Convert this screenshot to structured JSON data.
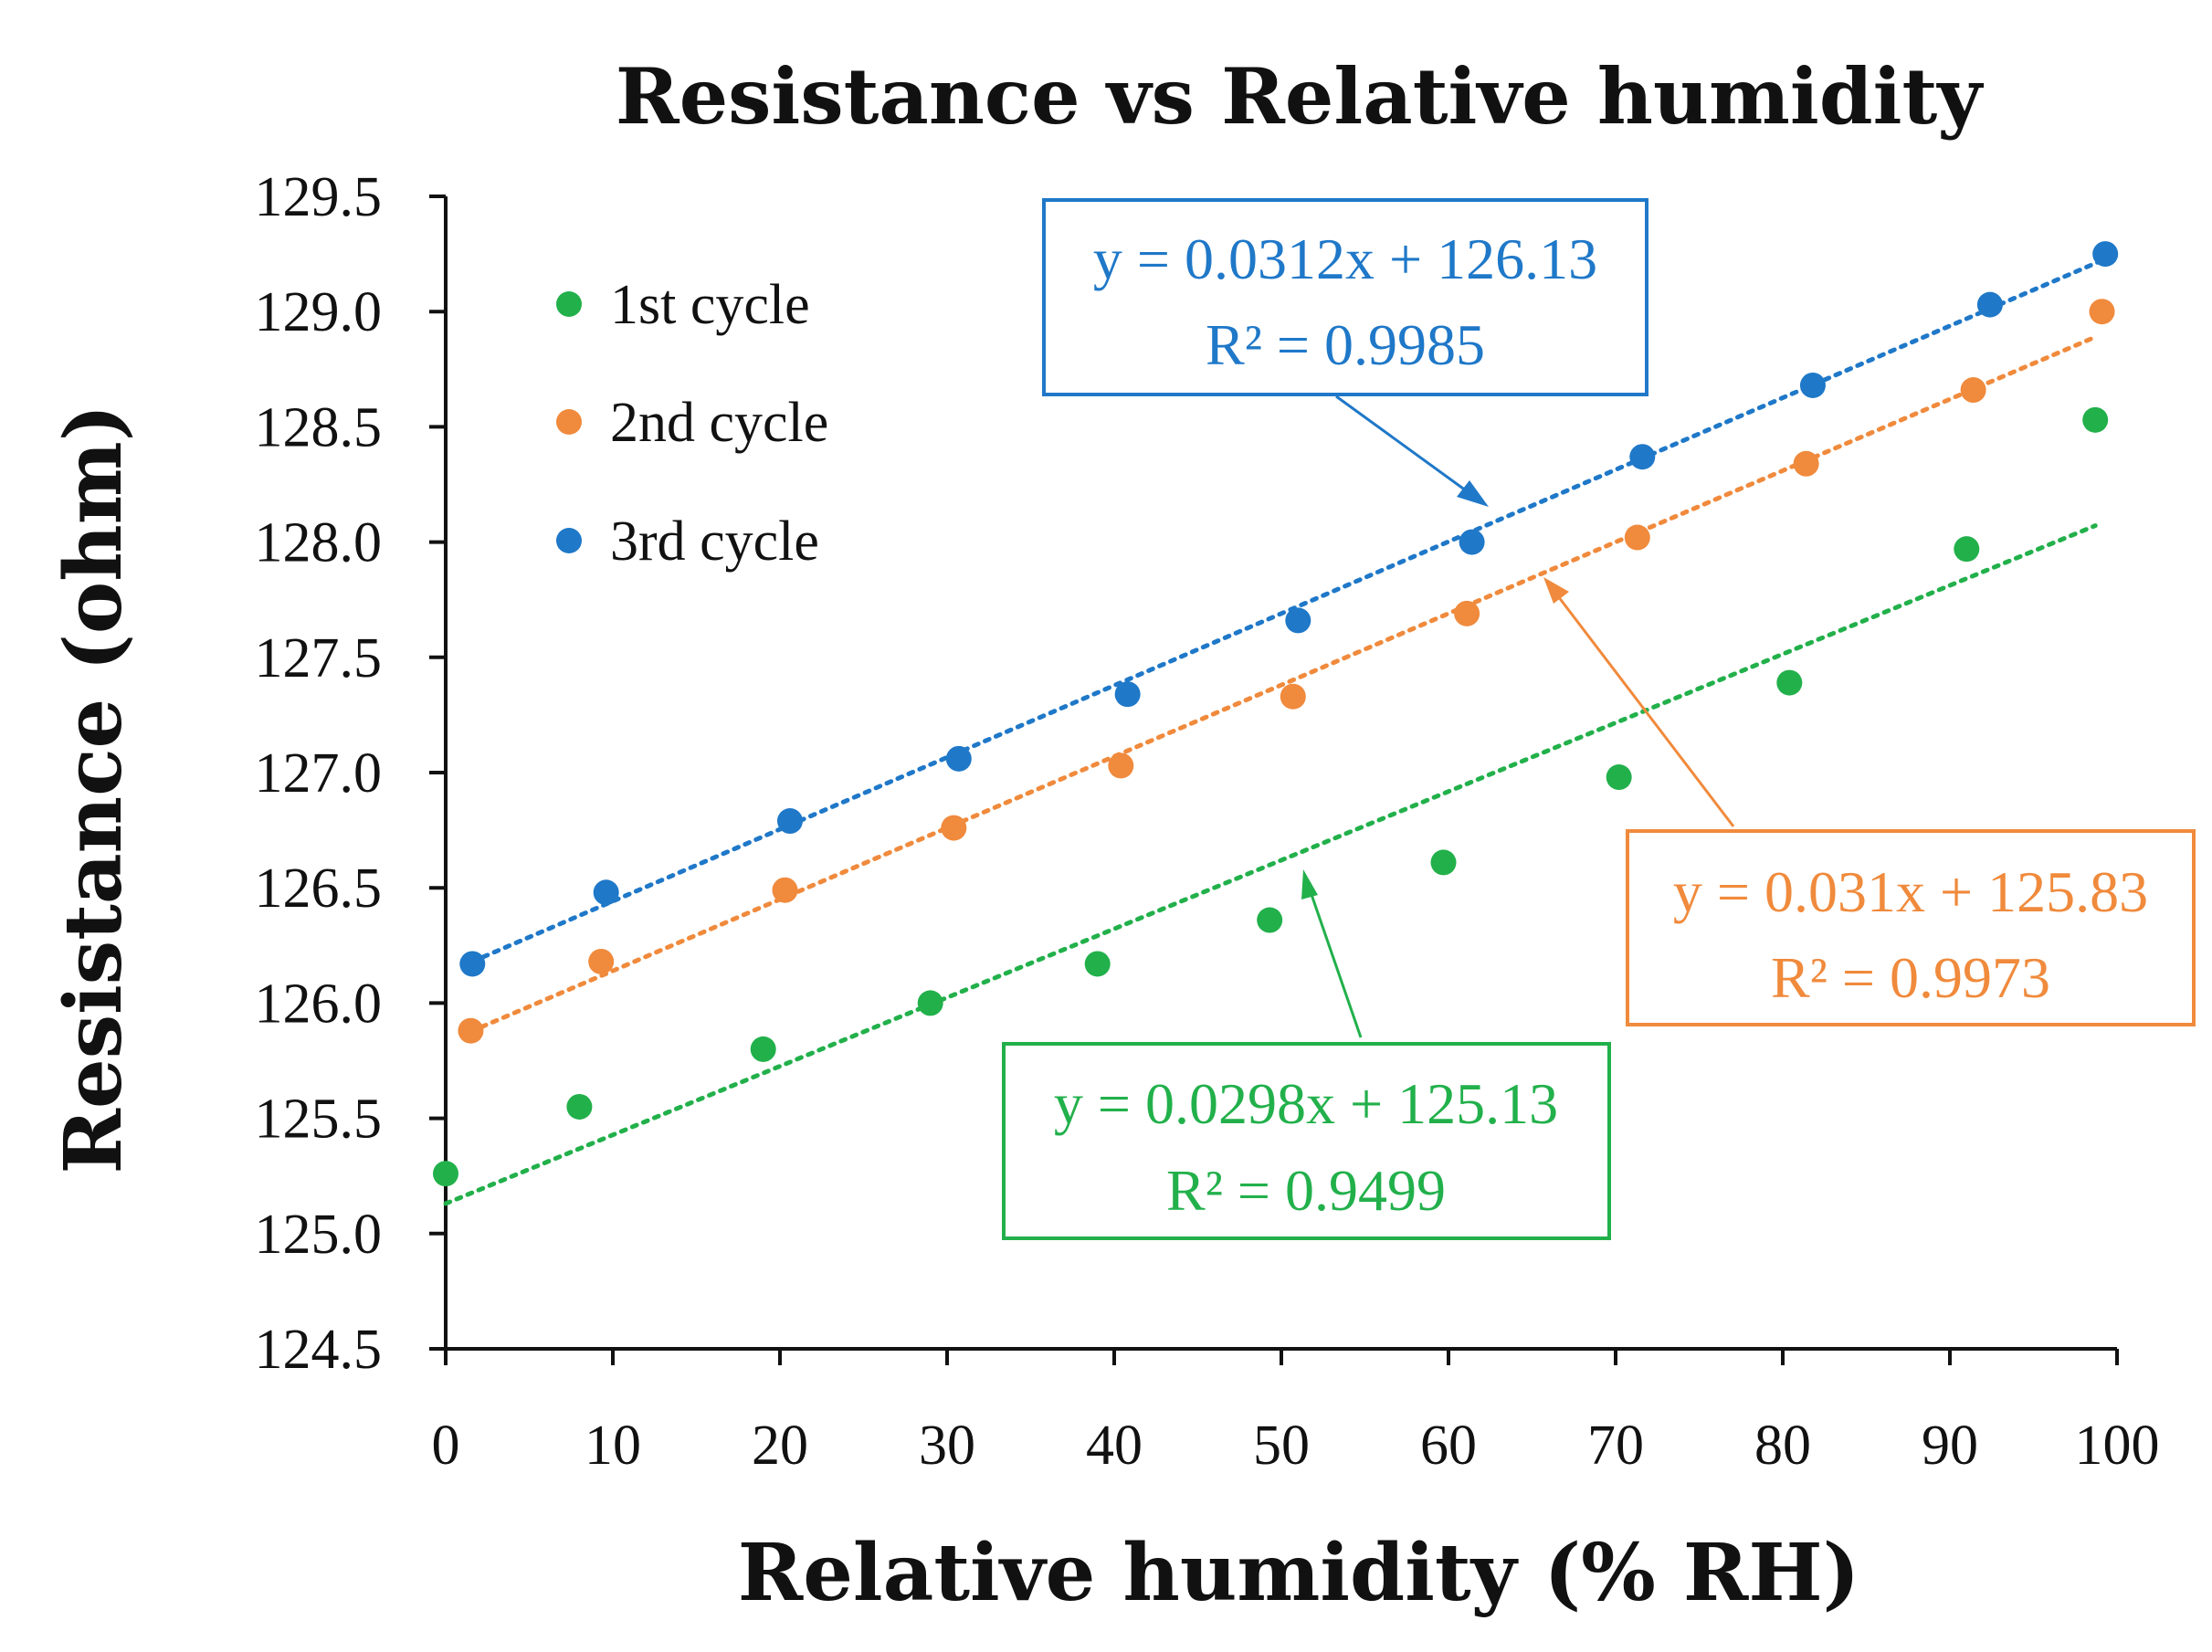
{
  "chart_data": {
    "type": "scatter",
    "title": "Resistance vs Relative humidity",
    "xlabel": "Relative humidity (% RH)",
    "ylabel": "Resistance (ohm)",
    "xlim": [
      0,
      100
    ],
    "ylim": [
      124.5,
      129.5
    ],
    "x_ticks": [
      "0",
      "10",
      "20",
      "30",
      "40",
      "50",
      "60",
      "70",
      "80",
      "90",
      "100"
    ],
    "y_ticks": [
      "124.5",
      "125.0",
      "125.5",
      "126.0",
      "126.5",
      "127.0",
      "127.5",
      "128.0",
      "128.5",
      "129.0",
      "129.5"
    ],
    "grid": false,
    "legend_position": "top-left",
    "series": [
      {
        "name": "1st cycle",
        "color": "#22b04b",
        "points": [
          {
            "x": 0,
            "y": 125.26
          },
          {
            "x": 8,
            "y": 125.55
          },
          {
            "x": 19,
            "y": 125.8
          },
          {
            "x": 29,
            "y": 126.0
          },
          {
            "x": 39,
            "y": 126.17
          },
          {
            "x": 49.3,
            "y": 126.36
          },
          {
            "x": 59.7,
            "y": 126.61
          },
          {
            "x": 70.2,
            "y": 126.98
          },
          {
            "x": 80.4,
            "y": 127.39
          },
          {
            "x": 91,
            "y": 127.97
          },
          {
            "x": 98.7,
            "y": 128.53
          }
        ],
        "trendline": {
          "slope": 0.0298,
          "intercept": 125.13,
          "x_range": [
            0,
            98.7
          ],
          "equation": "y = 0.0298x + 125.13",
          "r2": "R² = 0.9499"
        }
      },
      {
        "name": "2nd cycle",
        "color": "#f08a3c",
        "points": [
          {
            "x": 1.5,
            "y": 125.88
          },
          {
            "x": 9.3,
            "y": 126.18
          },
          {
            "x": 20.3,
            "y": 126.49
          },
          {
            "x": 30.4,
            "y": 126.76
          },
          {
            "x": 40.4,
            "y": 127.03
          },
          {
            "x": 50.7,
            "y": 127.33
          },
          {
            "x": 61.1,
            "y": 127.69
          },
          {
            "x": 71.3,
            "y": 128.02
          },
          {
            "x": 81.4,
            "y": 128.34
          },
          {
            "x": 91.4,
            "y": 128.66
          },
          {
            "x": 99.1,
            "y": 129.0
          }
        ],
        "trendline": {
          "slope": 0.031,
          "intercept": 125.83,
          "x_range": [
            1.5,
            98.7
          ],
          "equation": "y = 0.031x + 125.83",
          "r2": "R² = 0.9973"
        }
      },
      {
        "name": "3rd cycle",
        "color": "#1f78c8",
        "points": [
          {
            "x": 1.6,
            "y": 126.17
          },
          {
            "x": 9.6,
            "y": 126.48
          },
          {
            "x": 20.6,
            "y": 126.79
          },
          {
            "x": 30.7,
            "y": 127.06
          },
          {
            "x": 40.8,
            "y": 127.34
          },
          {
            "x": 51,
            "y": 127.66
          },
          {
            "x": 61.4,
            "y": 128.0
          },
          {
            "x": 71.6,
            "y": 128.37
          },
          {
            "x": 81.8,
            "y": 128.68
          },
          {
            "x": 92.4,
            "y": 129.03
          },
          {
            "x": 99.3,
            "y": 129.25
          }
        ],
        "trendline": {
          "slope": 0.0312,
          "intercept": 126.13,
          "x_range": [
            1.6,
            99.3
          ],
          "equation": "y = 0.0312x + 126.13",
          "r2": "R² = 0.9985"
        }
      }
    ]
  }
}
